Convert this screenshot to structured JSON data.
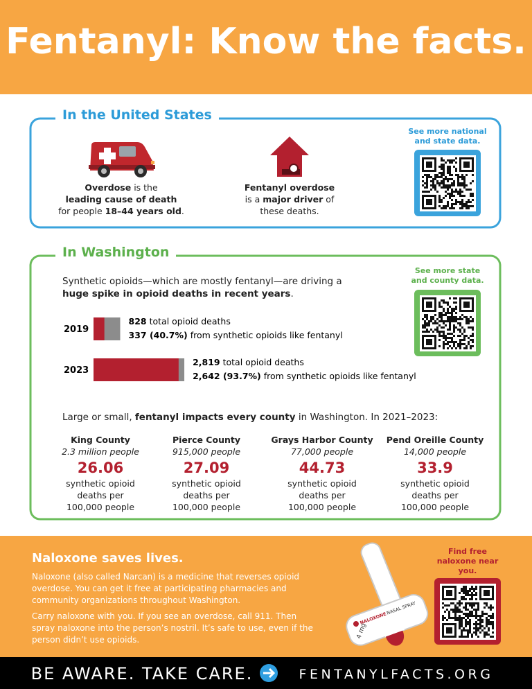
{
  "header": {
    "title": "Fentanyl: Know the facts."
  },
  "us": {
    "heading": "In the United States",
    "facts": [
      [
        "Overdose",
        "is the",
        "leading cause of death",
        "for people",
        "18–44 years old",
        "."
      ],
      [
        "Fentanyl overdose",
        "is a",
        "major driver",
        "of",
        "these deaths."
      ]
    ],
    "qr_caption": "See more national and state data."
  },
  "washington": {
    "heading": "In Washington",
    "intro": [
      "Synthetic opioids—which are mostly fentanyl—are driving a",
      "huge spike in opioid deaths in recent years",
      "."
    ],
    "qr_caption": "See more state and county data.",
    "chart": {
      "type": "bar",
      "categories": [
        "2019",
        "2023"
      ],
      "series": [
        {
          "name": "total opioid deaths",
          "color": "#8c8c8c",
          "values": [
            828,
            2819
          ],
          "value_labels": [
            "828",
            "2,819"
          ]
        },
        {
          "name": "from synthetic opioids like fentanyl",
          "color": "#b3202f",
          "values": [
            337,
            2642
          ],
          "value_labels": [
            "337 (40.7%)",
            "2,642 (93.7%)"
          ]
        }
      ]
    },
    "counties_intro": [
      "Large or small,",
      "fentanyl impacts every county",
      "in Washington. In 2021–2023:"
    ],
    "counties": [
      {
        "name": "King County",
        "population": "2.3 million people",
        "rate": 26.06
      },
      {
        "name": "Pierce County",
        "population": "915,000 people",
        "rate": 27.09
      },
      {
        "name": "Grays Harbor County",
        "population": "77,000 people",
        "rate": 44.73
      },
      {
        "name": "Pend Oreille County",
        "population": "14,000 people",
        "rate": 33.9
      }
    ],
    "rate_label": "synthetic opioid deaths per 100,000 people"
  },
  "naloxone": {
    "heading": "Naloxone saves lives.",
    "paragraphs": [
      "Naloxone (also called Narcan) is a medicine that reverses opioid overdose. You can get it free at participating pharmacies and community organizations throughout Washington.",
      "Carry naloxone with you. If you see an overdose, call 911. Then spray naloxone into the person’s nostril. It’s safe to use, even if the person didn’t use opioids."
    ],
    "device": {
      "brand": "NALOXONE",
      "product": "NASAL SPRAY",
      "dose": "4 mg"
    },
    "qr_caption": "Find free naloxone near you."
  },
  "footer": {
    "tagline": "BE AWARE. TAKE CARE.",
    "url": "FENTANYLFACTS.ORG"
  }
}
